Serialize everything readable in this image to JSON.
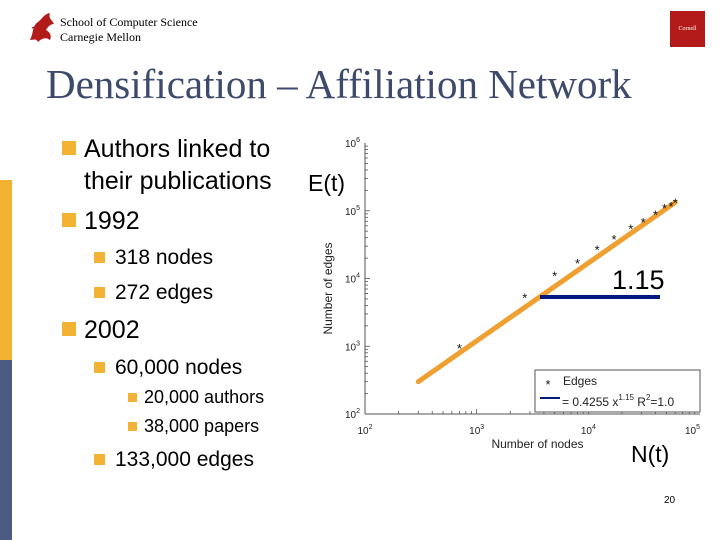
{
  "header": {
    "school_line1": "School of Computer Science",
    "school_line2": "Carnegie Mellon",
    "cornell_logo_text": "Cornell"
  },
  "slide": {
    "title": "Densification – Affiliation Network",
    "bullets": {
      "b1_line1": "Authors linked to",
      "b1_line2": "their publications",
      "b2": "1992",
      "b2_sub1": "318 nodes",
      "b2_sub2": "272 edges",
      "b3": "2002",
      "b3_sub1": "60,000 nodes",
      "b3_sub1_a": "20,000 authors",
      "b3_sub1_b": "38,000 papers",
      "b3_sub2": "133,000 edges"
    },
    "label_et": "E(t)",
    "label_nt": "N(t)",
    "slope_label": "1.15",
    "page_number": "20"
  },
  "colors": {
    "accent": "#f2b233",
    "stripe_top": "#ffffff",
    "stripe_mid": "#f2b233",
    "stripe_bottom": "#4b5b83",
    "title": "#3d4a6b",
    "fit_line": "#f0a030",
    "slope_line": "#001a80",
    "logo_red": "#b31b1b"
  },
  "chart_data": {
    "type": "scatter",
    "x_scale": "log",
    "y_scale": "log",
    "xlabel": "Number of nodes",
    "ylabel": "Number of edges",
    "xlim": [
      100,
      100000
    ],
    "ylim": [
      100,
      1000000
    ],
    "x_ticks": [
      {
        "value": 100,
        "base": "10",
        "exp": "2"
      },
      {
        "value": 1000,
        "base": "10",
        "exp": "3"
      },
      {
        "value": 10000,
        "base": "10",
        "exp": "4"
      },
      {
        "value": 100000,
        "base": "10",
        "exp": "5"
      }
    ],
    "y_ticks": [
      {
        "value": 100,
        "base": "10",
        "exp": "2"
      },
      {
        "value": 1000,
        "base": "10",
        "exp": "3"
      },
      {
        "value": 10000,
        "base": "10",
        "exp": "4"
      },
      {
        "value": 100000,
        "base": "10",
        "exp": "5"
      },
      {
        "value": 1000000,
        "base": "10",
        "exp": "6"
      }
    ],
    "series": [
      {
        "name": "Edges",
        "marker": "*",
        "points": [
          {
            "x": 700,
            "y": 950
          },
          {
            "x": 2700,
            "y": 5200
          },
          {
            "x": 5000,
            "y": 11000
          },
          {
            "x": 8000,
            "y": 17000
          },
          {
            "x": 12000,
            "y": 27000
          },
          {
            "x": 17000,
            "y": 38000
          },
          {
            "x": 24000,
            "y": 55000
          },
          {
            "x": 31000,
            "y": 68000
          },
          {
            "x": 40000,
            "y": 88000
          },
          {
            "x": 48000,
            "y": 110000
          },
          {
            "x": 55000,
            "y": 118000
          },
          {
            "x": 60000,
            "y": 133000
          }
        ]
      }
    ],
    "fit": {
      "name": "fit",
      "coefficient": 0.4255,
      "exponent": 1.15,
      "x_range": [
        300,
        60000
      ]
    },
    "legend": {
      "placement": "bottom-right",
      "entry1_marker": "*",
      "entry1_label": "Edges",
      "entry2_prefix": "= 0.4255 x",
      "entry2_exp": "1.15",
      "entry2_r2_label": "R",
      "entry2_r2_exp": "2",
      "entry2_r2_value": "=1.0"
    }
  }
}
